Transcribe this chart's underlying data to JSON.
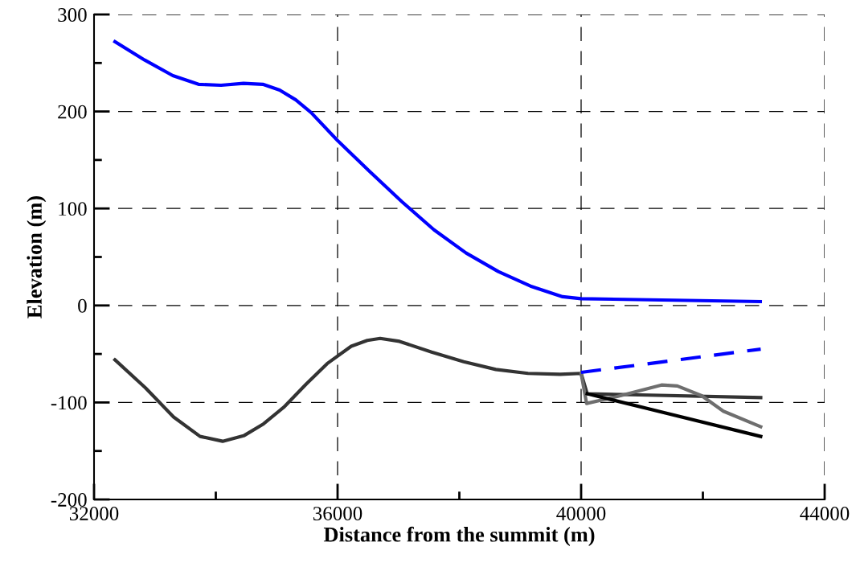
{
  "chart_data": {
    "type": "line",
    "xlabel": "Distance from the summit (m)",
    "ylabel": "Elevation (m)",
    "xlim": [
      32000,
      44000
    ],
    "xticks": [
      32000,
      36000,
      40000,
      44000
    ],
    "ylim": [
      -200,
      300
    ],
    "yticks": [
      -200,
      -100,
      0,
      100,
      200,
      300
    ],
    "grid": true,
    "legend": false,
    "marker": "none",
    "series": [
      {
        "color": "#0000ff",
        "line_style": "solid",
        "x": [
          32343,
          32832,
          33294,
          33716,
          34086,
          34455,
          34772,
          35049,
          35313,
          35564,
          36000,
          36528,
          37056,
          37584,
          38112,
          38640,
          39168,
          39696,
          40000,
          42943
        ],
        "values": [
          272,
          253,
          237,
          228,
          227,
          229,
          228,
          222,
          212,
          199,
          170,
          138,
          107,
          78,
          54,
          35,
          20,
          9,
          7,
          4
        ]
      },
      {
        "color": "#333333",
        "line_style": "solid",
        "x": [
          32343,
          32845,
          33307,
          33742,
          34112,
          34468,
          34785,
          35115,
          35485,
          35828,
          36224,
          36488,
          36699,
          37016,
          37544,
          38072,
          38600,
          39128,
          39656,
          40000,
          40100,
          42950
        ],
        "values": [
          -56,
          -85,
          -115,
          -135,
          -140,
          -134,
          -122,
          -105,
          -81,
          -60,
          -42,
          -36,
          -34,
          -37,
          -48,
          -58,
          -66,
          -70,
          -71,
          -70,
          -91,
          -95
        ]
      },
      {
        "color": "#6e6e6e",
        "line_style": "solid",
        "x": [
          40000,
          40090,
          40580,
          41320,
          41580,
          41980,
          42336,
          42950
        ],
        "values": [
          -70,
          -101,
          -94,
          -82,
          -83,
          -93,
          -109,
          -125
        ]
      },
      {
        "color": "#000000",
        "line_style": "solid",
        "x": [
          40100,
          42950
        ],
        "values": [
          -91,
          -135
        ]
      },
      {
        "color": "#0000ff",
        "line_style": "dashed",
        "x": [
          40000,
          42950
        ],
        "values": [
          -69,
          -45
        ]
      }
    ]
  }
}
